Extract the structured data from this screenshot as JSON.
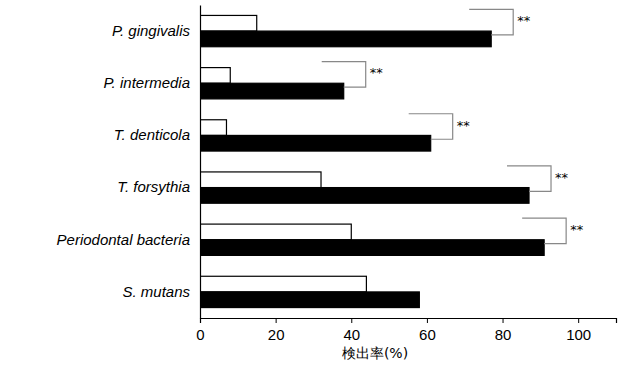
{
  "chart_data": {
    "type": "bar",
    "orientation": "horizontal",
    "x_label": "検出率(%)",
    "categories": [
      "P. gingivalis",
      "P. intermedia",
      "T. denticola",
      "T. forsythia",
      "Periodontal bacteria",
      "S. mutans"
    ],
    "series": [
      {
        "color": "#ffffff",
        "values": [
          15,
          8,
          7,
          32,
          40,
          44
        ]
      },
      {
        "color": "#000000",
        "values": [
          77,
          38,
          61,
          87,
          91,
          58
        ]
      }
    ],
    "xlim": [
      0,
      110
    ],
    "xticks": [
      0,
      20,
      40,
      60,
      80,
      100
    ],
    "grid": false,
    "annotations": [
      {
        "text": "**",
        "category": "P. gingivalis"
      },
      {
        "text": "**",
        "category": "P. intermedia"
      },
      {
        "text": "**",
        "category": "T. denticola"
      },
      {
        "text": "**",
        "category": "T. forsythia"
      },
      {
        "text": "**",
        "category": "Periodontal bacteria"
      }
    ]
  }
}
